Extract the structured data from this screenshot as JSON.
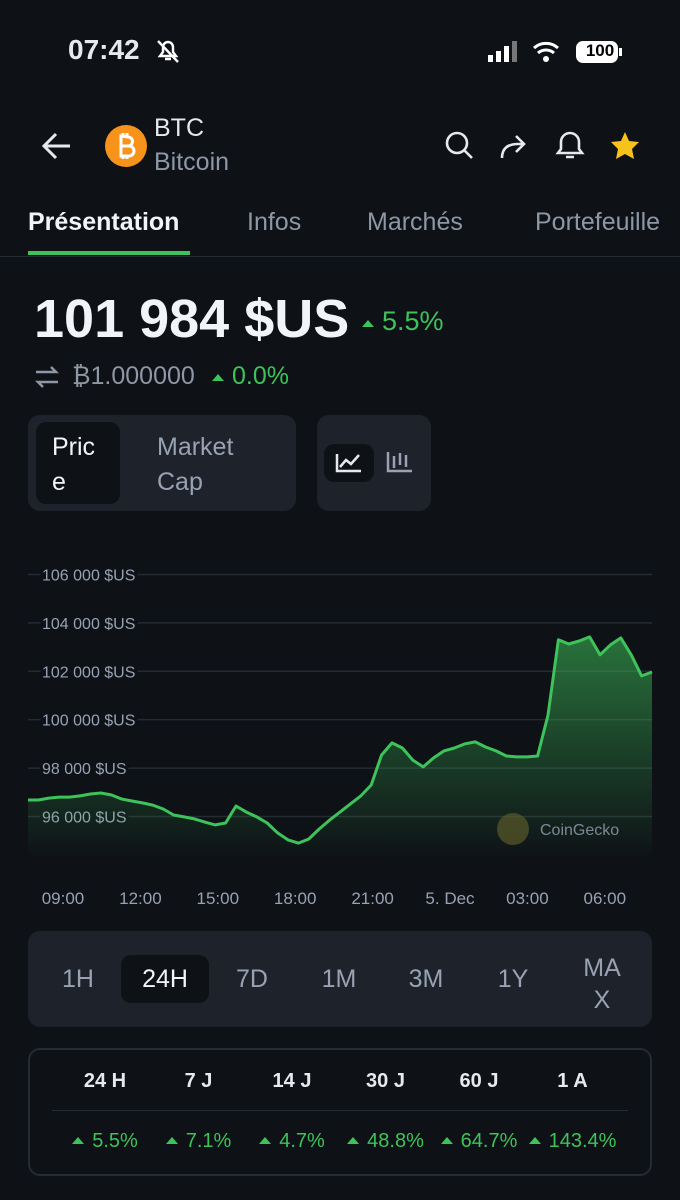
{
  "status": {
    "time": "07:42",
    "battery": "100"
  },
  "header": {
    "symbol": "BTC",
    "name": "Bitcoin"
  },
  "tabs": [
    "Présentation",
    "Infos",
    "Marchés",
    "Portefeuille"
  ],
  "price": {
    "value": "101 984 $US",
    "change": "5.5%",
    "btc": "₿1.000000",
    "btc_change": "0.0%"
  },
  "toggles": [
    "Price",
    "Market Cap"
  ],
  "chart_data": {
    "type": "line",
    "x_tick_labels": [
      "09:00",
      "12:00",
      "15:00",
      "18:00",
      "21:00",
      "5. Dec",
      "03:00",
      "06:00"
    ],
    "series": [
      {
        "name": "BTC",
        "color": "#3ec25a",
        "values": [
          96680,
          96680,
          96760,
          96800,
          96800,
          96850,
          96930,
          96970,
          96890,
          96720,
          96640,
          96560,
          96470,
          96310,
          96060,
          95980,
          95900,
          95770,
          95650,
          95730,
          96430,
          96180,
          95980,
          95730,
          95320,
          95030,
          94900,
          95070,
          95480,
          95850,
          96180,
          96520,
          96850,
          97300,
          98540,
          99040,
          98830,
          98330,
          98050,
          98420,
          98710,
          98830,
          99000,
          99080,
          98870,
          98710,
          98500,
          98460,
          98460,
          98500,
          100190,
          103300,
          103130,
          103250,
          103420,
          102680,
          103090,
          103380,
          102680,
          101810,
          101970
        ]
      }
    ],
    "ylim": [
      94200,
      106600
    ],
    "yticks": [
      {
        "value": 96000,
        "label": "96 000 $US"
      },
      {
        "value": 98000,
        "label": "98 000 $US"
      },
      {
        "value": 100000,
        "label": "100 000 $US"
      },
      {
        "value": 102000,
        "label": "102 000 $US"
      },
      {
        "value": 104000,
        "label": "104 000 $US"
      },
      {
        "value": 106000,
        "label": "106 000 $US"
      }
    ],
    "grid": true,
    "watermark": "CoinGecko"
  },
  "periods": {
    "items": [
      "1H",
      "24H",
      "7D",
      "1M",
      "3M",
      "1Y",
      "MAX"
    ],
    "selected": "24H"
  },
  "performance": {
    "headers": [
      "24 H",
      "7 J",
      "14 J",
      "30 J",
      "60 J",
      "1 A"
    ],
    "values": [
      "5.5%",
      "7.1%",
      "4.7%",
      "48.8%",
      "64.7%",
      "143.4%"
    ]
  }
}
